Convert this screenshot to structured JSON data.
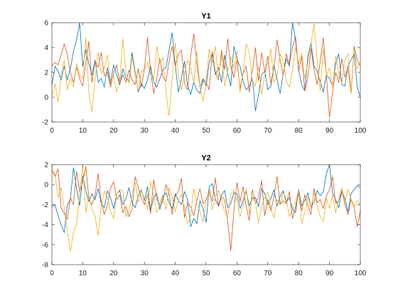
{
  "chart_data": [
    {
      "type": "line",
      "title": "Y1",
      "xlabel": "",
      "ylabel": "",
      "xlim": [
        0,
        100
      ],
      "ylim": [
        -2,
        6
      ],
      "xticks": [
        0,
        10,
        20,
        30,
        40,
        50,
        60,
        70,
        80,
        90,
        100
      ],
      "yticks": [
        -2,
        0,
        2,
        4,
        6
      ],
      "grid": false,
      "legend": "none",
      "series": [
        {
          "color": "#0072BD",
          "values": [
            0.9,
            2.5,
            2.1,
            1.4,
            2.5,
            1.4,
            2.3,
            3.7,
            4.6,
            6.0,
            2.5,
            3.8,
            2.7,
            1.8,
            3.0,
            1.2,
            1.5,
            0.8,
            2.4,
            1.1,
            2.6,
            1.8,
            1.0,
            2.3,
            1.5,
            1.3,
            3.6,
            2.0,
            0.4,
            1.1,
            0.7,
            1.4,
            2.5,
            1.2,
            0.8,
            1.5,
            2.2,
            2.4,
            3.8,
            5.2,
            2.6,
            0.4,
            1.5,
            2.9,
            0.9,
            0.2,
            1.2,
            0.6,
            0.3,
            1.4,
            0.9,
            2.8,
            3.5,
            1.8,
            2.4,
            1.2,
            3.4,
            1.9,
            0.9,
            4.1,
            3.1,
            2.5,
            1.3,
            0.6,
            0.9,
            1.5,
            -1.1,
            0.2,
            1.8,
            2.1,
            0.6,
            0.9,
            2.6,
            1.4,
            0.3,
            1.9,
            3.1,
            2.5,
            6.0,
            4.6,
            2.2,
            1.0,
            0.5,
            3.3,
            4.4,
            2.5,
            2.1,
            1.3,
            0.4,
            1.8,
            1.5,
            0.9,
            2.7,
            3.5,
            1.0,
            0.9,
            2.5,
            3.0,
            3.5,
            0.8,
            0.0
          ]
        },
        {
          "color": "#D95319",
          "values": [
            2.5,
            2.8,
            2.6,
            3.4,
            4.3,
            3.5,
            2.0,
            1.2,
            2.4,
            1.5,
            0.9,
            2.8,
            4.5,
            1.2,
            2.9,
            2.4,
            3.6,
            1.7,
            2.0,
            0.8,
            1.9,
            2.6,
            1.1,
            1.8,
            1.2,
            2.2,
            1.4,
            1.0,
            2.3,
            0.8,
            2.3,
            4.8,
            2.1,
            0.3,
            1.5,
            3.1,
            1.6,
            1.3,
            2.9,
            4.1,
            2.5,
            3.5,
            3.8,
            1.1,
            0.6,
            3.3,
            5.1,
            2.7,
            0.8,
            1.5,
            1.2,
            0.6,
            3.7,
            2.0,
            1.4,
            3.8,
            2.2,
            4.7,
            2.5,
            1.6,
            3.0,
            0.7,
            1.9,
            2.5,
            0.4,
            2.1,
            4.0,
            1.3,
            3.6,
            2.0,
            3.3,
            1.1,
            2.4,
            4.6,
            3.0,
            1.8,
            3.5,
            2.6,
            4.0,
            4.9,
            2.1,
            3.3,
            0.5,
            1.6,
            3.9,
            2.2,
            1.0,
            2.9,
            4.8,
            1.7,
            -1.6,
            0.4,
            2.0,
            1.2,
            3.1,
            1.6,
            2.4,
            0.3,
            4.1,
            3.0,
            2.5
          ]
        },
        {
          "color": "#EDB120",
          "values": [
            0.0,
            1.1,
            -0.4,
            1.8,
            3.0,
            0.6,
            1.5,
            0.8,
            2.7,
            1.8,
            1.5,
            4.8,
            0.3,
            -1.2,
            1.5,
            3.6,
            1.9,
            2.3,
            3.4,
            1.2,
            1.7,
            0.4,
            1.3,
            4.7,
            2.0,
            1.1,
            3.3,
            1.8,
            0.5,
            2.1,
            2.2,
            2.8,
            1.8,
            1.3,
            4.1,
            2.7,
            3.2,
            0.4,
            -1.5,
            1.5,
            4.4,
            1.8,
            0.6,
            1.9,
            3.0,
            2.3,
            1.2,
            3.7,
            0.8,
            -0.3,
            1.2,
            3.9,
            2.8,
            4.1,
            1.5,
            3.4,
            0.9,
            2.1,
            3.2,
            2.4,
            3.7,
            0.4,
            2.0,
            4.3,
            3.6,
            1.3,
            0.9,
            2.5,
            0.2,
            1.8,
            2.7,
            3.9,
            1.2,
            1.6,
            3.5,
            2.9,
            1.3,
            0.8,
            2.2,
            4.0,
            2.7,
            3.6,
            1.5,
            2.8,
            4.3,
            5.9,
            3.0,
            0.5,
            3.9,
            1.7,
            2.4,
            0.8,
            3.3,
            2.0,
            1.1,
            2.9,
            3.5,
            0.4,
            3.9,
            2.3,
            2.9
          ]
        }
      ]
    },
    {
      "type": "line",
      "title": "Y2",
      "xlabel": "",
      "ylabel": "",
      "xlim": [
        0,
        100
      ],
      "ylim": [
        -8,
        2
      ],
      "xticks": [
        0,
        10,
        20,
        30,
        40,
        50,
        60,
        70,
        80,
        90,
        100
      ],
      "yticks": [
        -8,
        -6,
        -4,
        -2,
        0,
        2
      ],
      "grid": false,
      "legend": "none",
      "series": [
        {
          "color": "#0072BD",
          "values": [
            -2.2,
            -2.0,
            -3.1,
            -4.0,
            -4.8,
            -2.1,
            -1.4,
            1.7,
            -0.4,
            -2.1,
            0.9,
            -0.6,
            -1.7,
            -0.9,
            -1.5,
            -0.4,
            -1.9,
            -2.3,
            -0.6,
            -1.3,
            -2.4,
            -1.0,
            -0.6,
            -2.0,
            -1.4,
            -0.3,
            -1.8,
            -2.3,
            -1.1,
            -0.5,
            -1.6,
            -0.2,
            -2.6,
            -1.3,
            -0.9,
            -2.5,
            -1.2,
            -0.8,
            -1.8,
            -2.4,
            -0.9,
            -1.6,
            -2.0,
            -0.7,
            -1.5,
            -4.2,
            -3.4,
            -3.9,
            -1.6,
            -2.4,
            -3.8,
            -0.2,
            0.1,
            -1.5,
            -2.1,
            -1.0,
            -0.6,
            -2.3,
            -1.9,
            -0.8,
            -0.9,
            -2.4,
            -1.6,
            -0.7,
            -2.1,
            -1.4,
            -1.3,
            -2.2,
            -0.4,
            -0.9,
            -2.0,
            -1.4,
            -0.5,
            -2.1,
            -1.2,
            -0.6,
            -1.8,
            -1.3,
            -2.4,
            -2.8,
            -0.5,
            -2.1,
            -1.6,
            -0.8,
            -2.3,
            -1.7,
            -0.6,
            -1.1,
            -0.7,
            1.1,
            2.0,
            -0.8,
            -1.5,
            -2.3,
            -0.6,
            -1.4,
            -2.7,
            -0.9,
            -0.5,
            -0.1,
            -0.3
          ]
        },
        {
          "color": "#D95319",
          "values": [
            1.4,
            0.8,
            1.6,
            -2.3,
            -2.9,
            -3.5,
            -1.3,
            -2.0,
            1.3,
            -0.7,
            0.3,
            1.8,
            -1.4,
            -2.0,
            -1.1,
            1.1,
            -1.7,
            -3.0,
            -2.0,
            -0.4,
            0.3,
            -1.5,
            -1.0,
            -2.8,
            -2.2,
            -3.2,
            -2.4,
            0.8,
            -0.3,
            -1.3,
            -2.0,
            -1.0,
            -2.9,
            0.5,
            -1.4,
            -2.1,
            -1.7,
            0.0,
            -0.9,
            -3.0,
            -1.1,
            -0.7,
            0.6,
            -3.3,
            -1.8,
            -2.2,
            -3.1,
            -1.6,
            -0.4,
            -1.9,
            -1.6,
            -0.5,
            -1.7,
            0.7,
            -2.2,
            -1.2,
            -1.5,
            -3.7,
            -6.6,
            -2.6,
            0.2,
            -1.7,
            -0.2,
            -2.2,
            -3.6,
            -0.5,
            -1.9,
            -1.2,
            0.4,
            -3.1,
            -1.5,
            -2.6,
            -1.2,
            0.8,
            -2.0,
            -1.6,
            -1.9,
            -0.7,
            -3.4,
            -2.2,
            -0.9,
            -2.6,
            -1.0,
            -2.1,
            -3.0,
            -0.4,
            -1.8,
            -1.5,
            -2.4,
            -1.1,
            -0.5,
            0.8,
            -1.9,
            -1.6,
            -0.6,
            -2.0,
            -3.0,
            -1.5,
            -2.3,
            -4.2,
            -2.6
          ]
        },
        {
          "color": "#EDB120",
          "values": [
            1.7,
            1.0,
            -1.3,
            -0.3,
            -2.3,
            -4.6,
            -6.7,
            -4.8,
            -3.9,
            -0.8,
            1.9,
            -2.8,
            -1.1,
            -2.4,
            -3.2,
            -5.1,
            -2.1,
            -0.6,
            -1.3,
            -2.6,
            -3.4,
            -1.0,
            -0.5,
            -0.6,
            -3.2,
            -2.7,
            -0.9,
            0.2,
            -1.8,
            -0.6,
            -1.4,
            -2.5,
            0.3,
            -1.1,
            -2.8,
            -1.9,
            -1.0,
            -2.5,
            -0.3,
            -1.2,
            -2.7,
            -1.6,
            -1.0,
            -2.3,
            -3.9,
            -3.1,
            -0.4,
            -1.9,
            -2.6,
            -3.7,
            -1.4,
            -0.8,
            -2.5,
            -1.1,
            -0.6,
            -1.5,
            -2.7,
            -3.3,
            -1.0,
            -0.5,
            -1.7,
            -3.2,
            -2.0,
            -0.4,
            -2.9,
            -1.2,
            -1.8,
            -3.8,
            -2.1,
            -1.3,
            -0.7,
            -2.4,
            -3.3,
            -1.5,
            -2.0,
            -0.8,
            -1.4,
            -3.2,
            -2.5,
            -1.7,
            -0.6,
            -3.9,
            -2.8,
            -1.2,
            -2.3,
            -0.8,
            -2.1,
            -3.2,
            -3.7,
            -1.4,
            -2.4,
            -1.0,
            -2.8,
            -1.5,
            -0.3,
            -1.9,
            -0.5,
            -1.4,
            -2.2,
            -1.6,
            -2.1
          ]
        }
      ]
    }
  ]
}
